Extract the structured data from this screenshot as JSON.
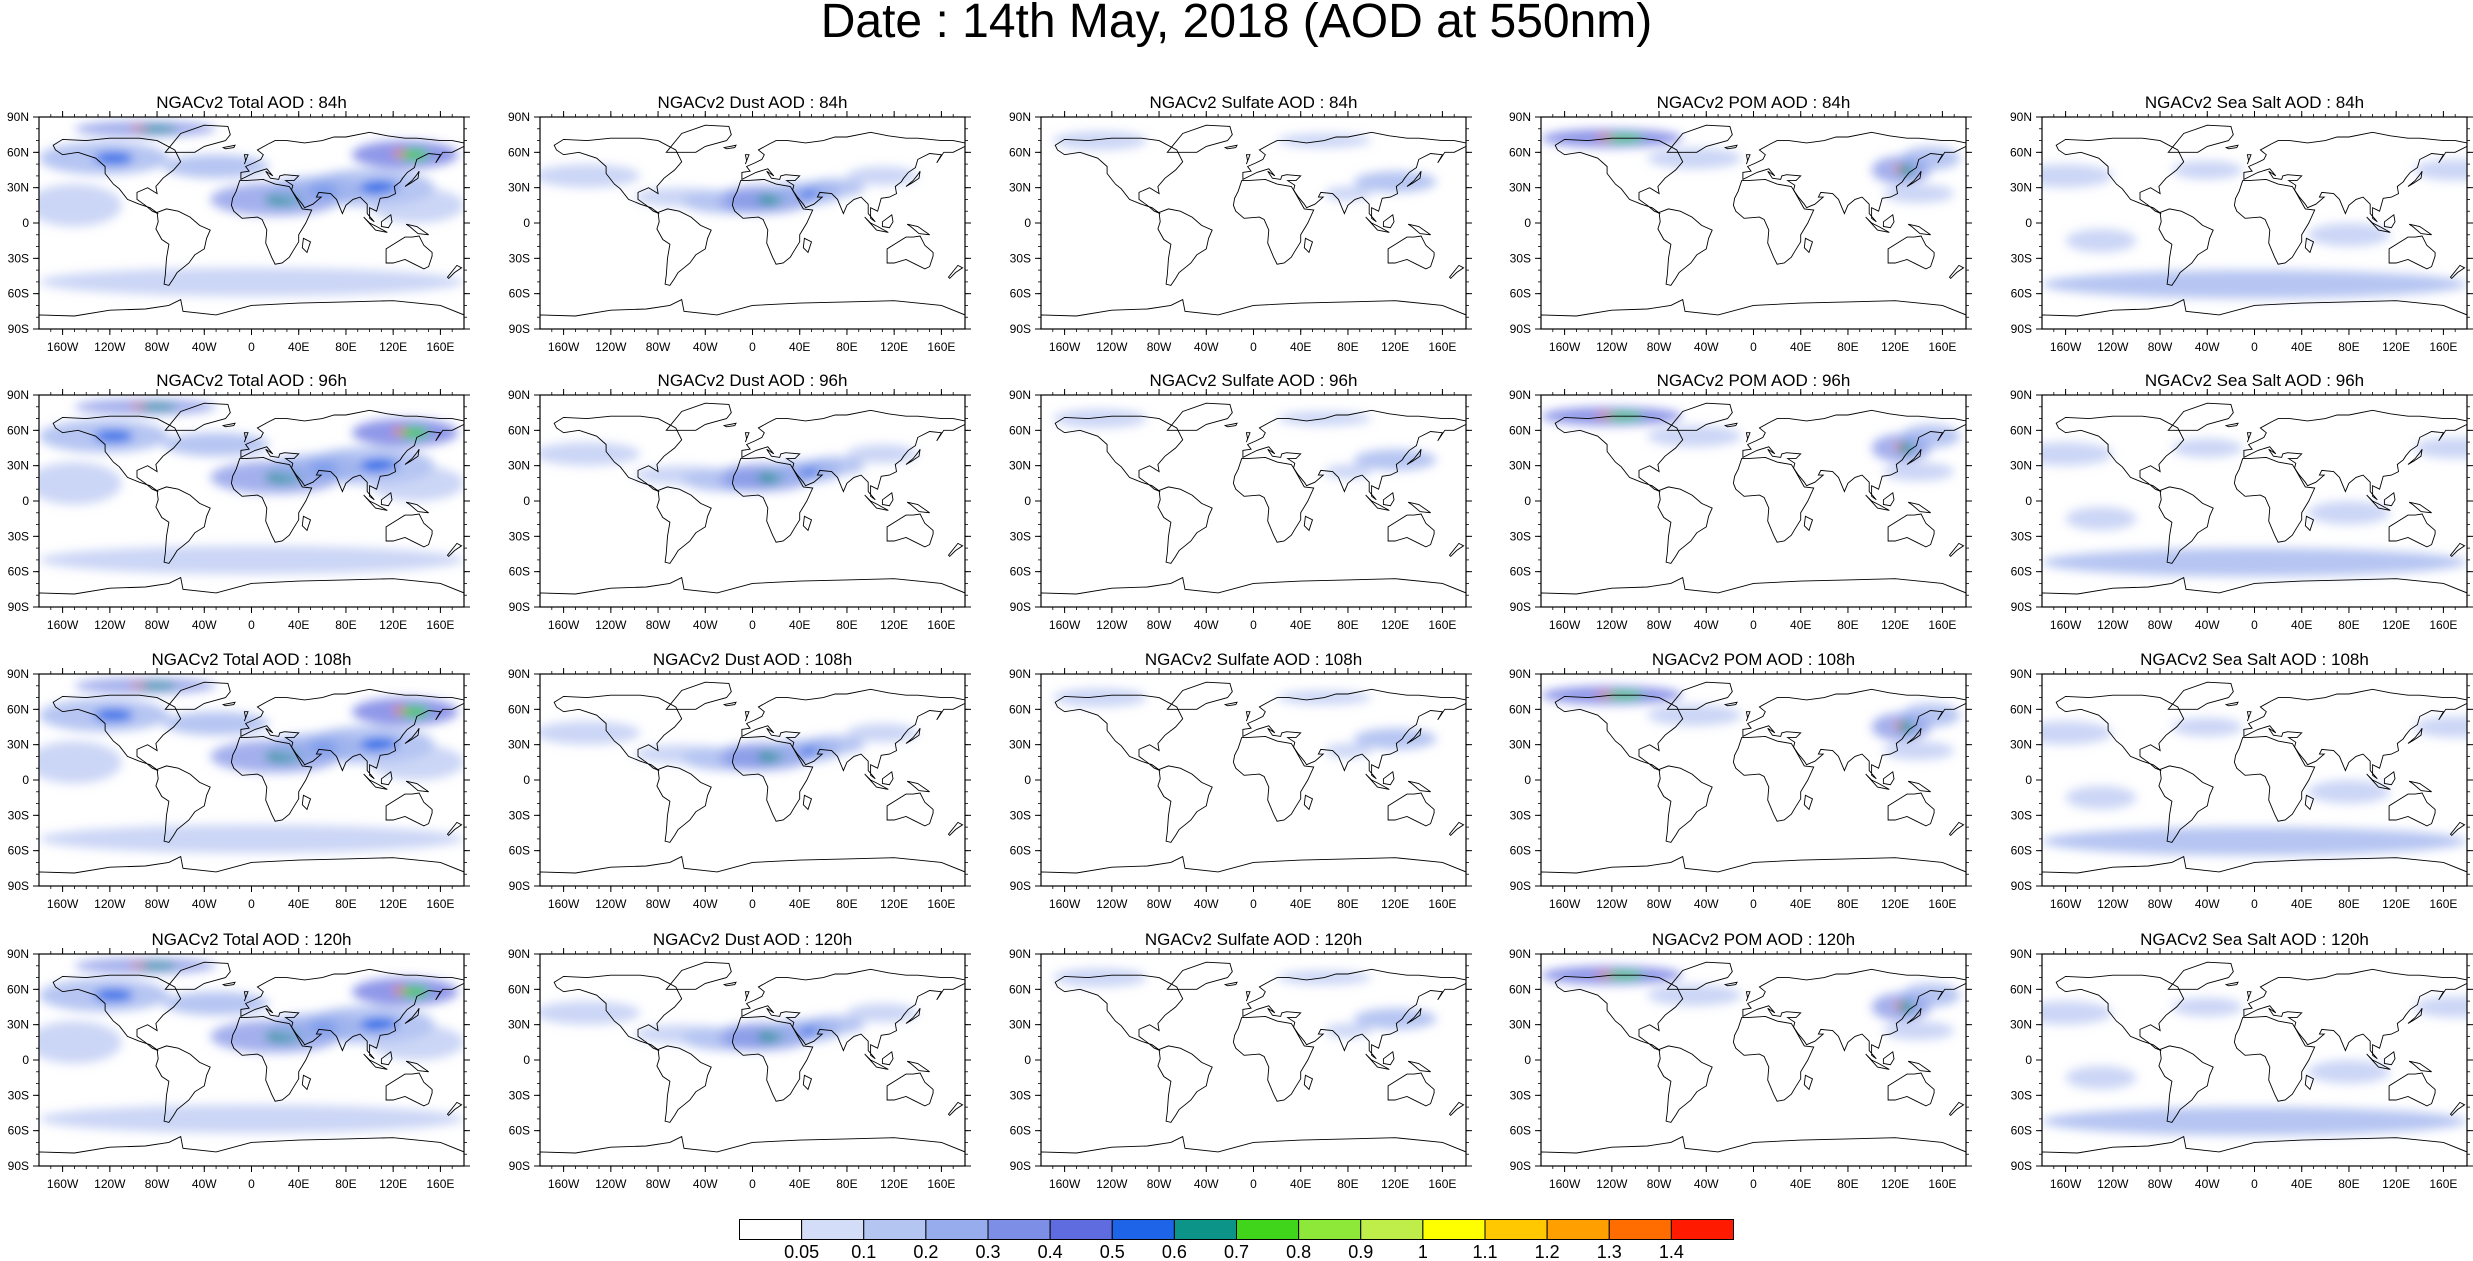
{
  "title": "Date : 14th May, 2018 (AOD at 550nm)",
  "panel_titles": [
    [
      "NGACv2 Total AOD : 84h",
      "NGACv2 Dust AOD : 84h",
      "NGACv2 Sulfate AOD : 84h",
      "NGACv2 POM AOD : 84h",
      "NGACv2 Sea Salt AOD : 84h"
    ],
    [
      "NGACv2 Total AOD : 96h",
      "NGACv2 Dust AOD : 96h",
      "NGACv2 Sulfate AOD : 96h",
      "NGACv2 POM AOD : 96h",
      "NGACv2 Sea Salt AOD : 96h"
    ],
    [
      "NGACv2 Total AOD : 108h",
      "NGACv2 Dust AOD : 108h",
      "NGACv2 Sulfate AOD : 108h",
      "NGACv2 POM AOD : 108h",
      "NGACv2 Sea Salt AOD : 108h"
    ],
    [
      "NGACv2 Total AOD : 120h",
      "NGACv2 Dust AOD : 120h",
      "NGACv2 Sulfate AOD : 120h",
      "NGACv2 POM AOD : 120h",
      "NGACv2 Sea Salt  AOD : 120h"
    ]
  ],
  "lat_labels": [
    "90N",
    "60N",
    "30N",
    "0",
    "30S",
    "60S",
    "90S"
  ],
  "lon_labels": [
    "160W",
    "120W",
    "80W",
    "40W",
    "0",
    "40E",
    "80E",
    "120E",
    "160E"
  ],
  "lon_values": [
    -160,
    -120,
    -80,
    -40,
    0,
    40,
    80,
    120,
    160
  ],
  "lat_values": [
    90,
    60,
    30,
    0,
    -30,
    -60,
    -90
  ],
  "colorbar": {
    "labels": [
      "0.05",
      "0.1",
      "0.2",
      "0.3",
      "0.4",
      "0.5",
      "0.6",
      "0.7",
      "0.8",
      "0.9",
      "1",
      "1.1",
      "1.2",
      "1.3",
      "1.4"
    ],
    "colors": [
      "#ffffff",
      "#d4ddf7",
      "#b5c5f2",
      "#97acec",
      "#7d8ee6",
      "#5f6ce0",
      "#1e64e8",
      "#0d9488",
      "#40d41a",
      "#8ee83a",
      "#bfee4a",
      "#ffff00",
      "#ffc800",
      "#ff9f00",
      "#ff6c00",
      "#ff1a00"
    ]
  }
}
